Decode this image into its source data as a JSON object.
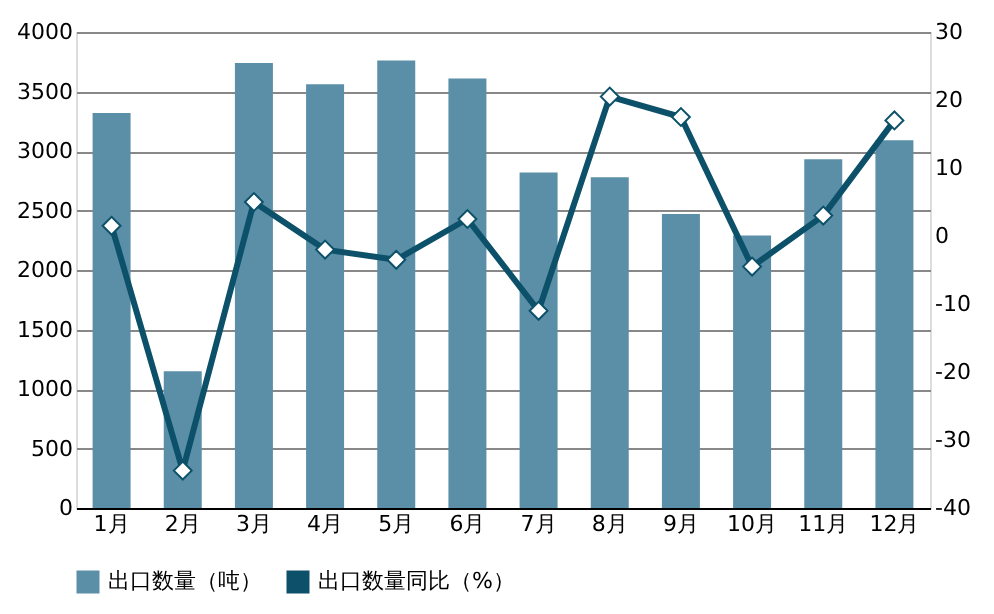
{
  "chart_data": {
    "type": "bar",
    "categories": [
      "1月",
      "2月",
      "3月",
      "4月",
      "5月",
      "6月",
      "7月",
      "8月",
      "9月",
      "10月",
      "11月",
      "12月"
    ],
    "series": [
      {
        "name": "出口数量（吨）",
        "color": "#5b8fa8",
        "values": [
          3320,
          1150,
          3740,
          3560,
          3760,
          3610,
          2820,
          2780,
          2470,
          2290,
          2930,
          3090
        ]
      },
      {
        "name": "出口数量同比（%）",
        "type": "line",
        "axis": "y2",
        "color": "#0c5169",
        "marker": "diamond",
        "values": [
          1.5,
          -34.5,
          5,
          -2,
          -3.5,
          2.5,
          -11,
          20.5,
          17.5,
          -4.5,
          3,
          17
        ]
      }
    ],
    "ylim": [
      0,
      4000
    ],
    "yticks": [
      0,
      500,
      1000,
      1500,
      2000,
      2500,
      3000,
      3500,
      4000
    ],
    "y2lim": [
      -40,
      30
    ],
    "y2ticks": [
      -40,
      -30,
      -20,
      -10,
      0,
      10,
      20,
      30
    ],
    "grid": "y",
    "legend": "bottom"
  }
}
